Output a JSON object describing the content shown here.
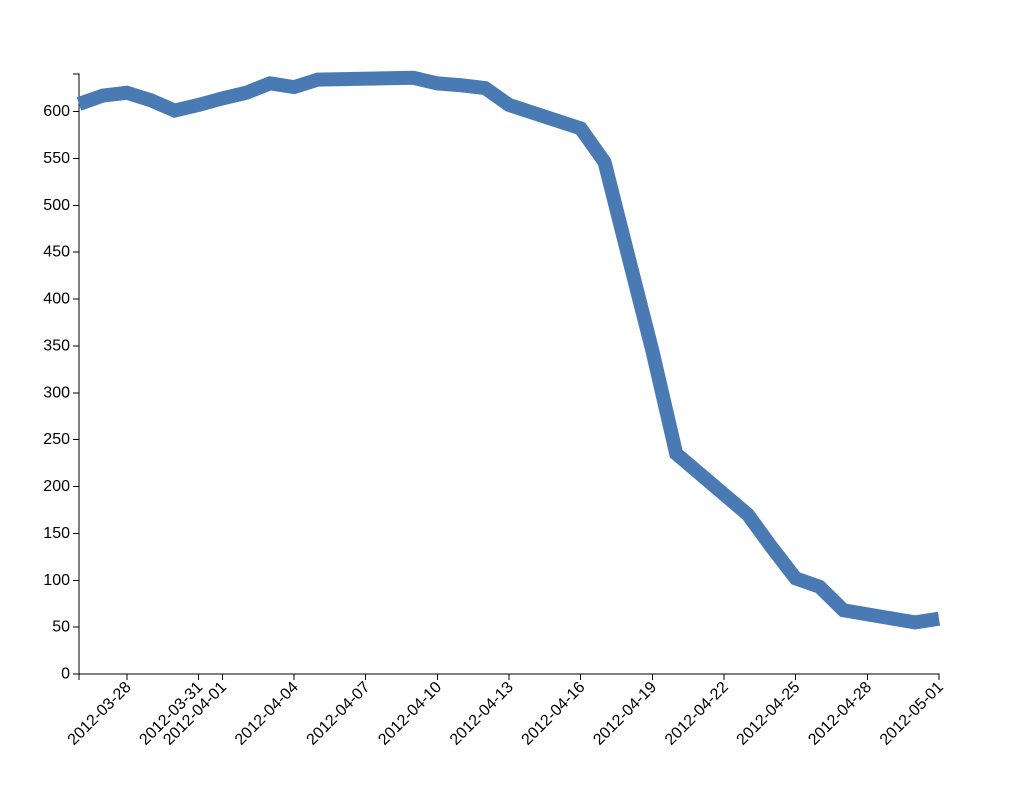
{
  "chart_data": {
    "type": "line",
    "title": "",
    "xlabel": "",
    "ylabel": "",
    "grid": false,
    "legend": "none",
    "xlim": [
      "2012-03-26",
      "2012-05-01"
    ],
    "ylim": [
      0,
      640
    ],
    "x_ticks": [
      "2012-03-28",
      "2012-03-31",
      "2012-04-01",
      "2012-04-04",
      "2012-04-07",
      "2012-04-10",
      "2012-04-13",
      "2012-04-16",
      "2012-04-19",
      "2012-04-22",
      "2012-04-25",
      "2012-04-28",
      "2012-05-01"
    ],
    "y_ticks": [
      "0",
      "50",
      "100",
      "150",
      "200",
      "250",
      "300",
      "350",
      "400",
      "450",
      "500",
      "550",
      "600"
    ],
    "series": [
      {
        "color": "#4a7ab4",
        "x": [
          "2012-03-26",
          "2012-03-27",
          "2012-03-28",
          "2012-03-29",
          "2012-03-30",
          "2012-03-31",
          "2012-04-01",
          "2012-04-02",
          "2012-04-03",
          "2012-04-04",
          "2012-04-05",
          "2012-04-09",
          "2012-04-10",
          "2012-04-11",
          "2012-04-12",
          "2012-04-13",
          "2012-04-16",
          "2012-04-17",
          "2012-04-18",
          "2012-04-19",
          "2012-04-20",
          "2012-04-23",
          "2012-04-24",
          "2012-04-25",
          "2012-04-26",
          "2012-04-27",
          "2012-04-30",
          "2012-05-01"
        ],
        "y": [
          608,
          617,
          620,
          612,
          601,
          607,
          614,
          620,
          630,
          626,
          634,
          636,
          630,
          628,
          625,
          607,
          582,
          546,
          445,
          345,
          235,
          170,
          135,
          102,
          93,
          68,
          55,
          59
        ]
      }
    ]
  }
}
